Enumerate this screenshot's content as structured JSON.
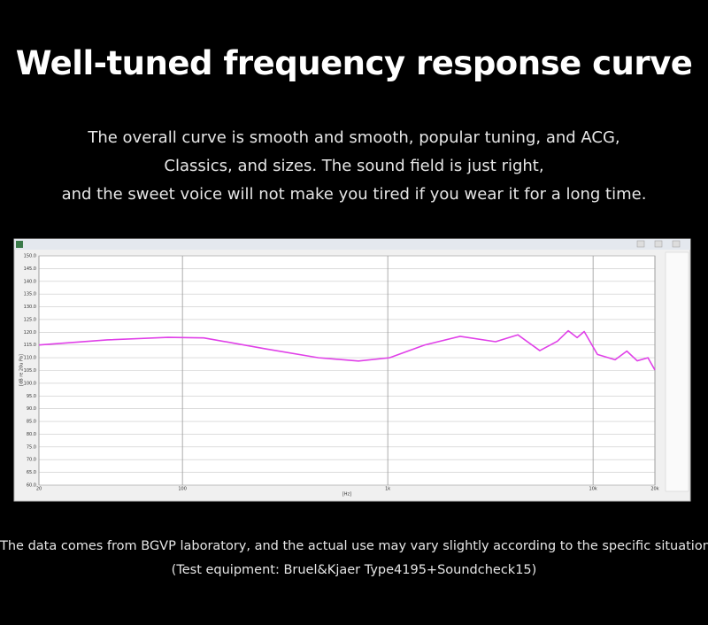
{
  "header": {
    "title": "Well-tuned frequency response curve",
    "description": [
      "The overall curve is smooth and smooth, popular tuning, and ACG,",
      "Classics, and sizes. The sound field is just right,",
      "and the sweet voice will not make you tired if you wear it for a long time."
    ]
  },
  "chart_data": {
    "type": "line",
    "x_label": "[Hz]",
    "y_label": "[dB re 20u Pa]",
    "log_x": true,
    "grid": true,
    "xlim": [
      20,
      20000
    ],
    "xticks": [
      20,
      100,
      {
        "value": 1000,
        "label": "1k"
      },
      {
        "value": 10000,
        "label": "10k"
      },
      {
        "value": 20000,
        "label": "20k"
      }
    ],
    "ylim": [
      60,
      150
    ],
    "yticks": [
      {
        "value": 60,
        "label": "60.0"
      },
      {
        "value": 65,
        "label": "65.0"
      },
      {
        "value": 70,
        "label": "70.0"
      },
      {
        "value": 75,
        "label": "75.0"
      },
      {
        "value": 80,
        "label": "80.0"
      },
      {
        "value": 85,
        "label": "85.0"
      },
      {
        "value": 90,
        "label": "90.0"
      },
      {
        "value": 95,
        "label": "95.0"
      },
      {
        "value": 100,
        "label": "100.0"
      },
      {
        "value": 105,
        "label": "105.0"
      },
      {
        "value": 110,
        "label": "110.0"
      },
      {
        "value": 115,
        "label": "115.0"
      },
      {
        "value": 120,
        "label": "120.0"
      },
      {
        "value": 125,
        "label": "125.0"
      },
      {
        "value": 130,
        "label": "130.0"
      },
      {
        "value": 135,
        "label": "135.0"
      },
      {
        "value": 140,
        "label": "140.0"
      },
      {
        "value": 145,
        "label": "145.0"
      },
      {
        "value": 150,
        "label": "150.0"
      }
    ],
    "series": [
      {
        "color": "#e040e8",
        "x": [
          20,
          43,
          85,
          127,
          254,
          460,
          720,
          1020,
          1510,
          2250,
          3350,
          4300,
          5500,
          6700,
          7570,
          8360,
          9050,
          10500,
          12800,
          14600,
          16400,
          18500,
          20000
        ],
        "values": [
          115,
          117,
          118,
          117.8,
          113.5,
          110,
          108.7,
          110,
          115,
          118.4,
          116.3,
          119,
          112.8,
          116.5,
          120.6,
          117.9,
          120.3,
          111.3,
          109.2,
          112.6,
          108.8,
          110,
          105.2
        ]
      }
    ]
  },
  "footer": [
    "The data comes from BGVP laboratory, and the actual use may vary slightly according to the specific situation",
    "(Test equipment: Bruel&Kjaer Type4195+Soundcheck15)"
  ]
}
